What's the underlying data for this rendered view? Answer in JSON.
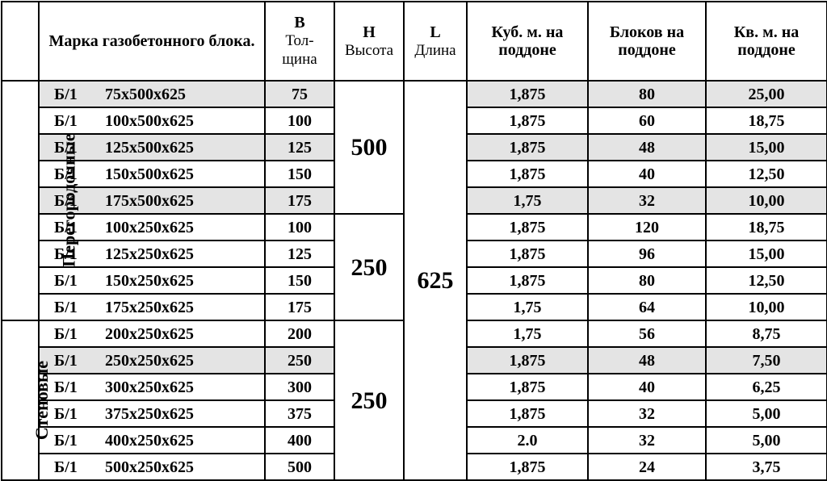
{
  "headers": {
    "cat": "",
    "mark": "Марка газобетонного блока.",
    "B": "B",
    "B_sub": "Тол-\nщина",
    "H": "H",
    "H_sub": "Высота",
    "L": "L",
    "L_sub": "Длина",
    "cub": "Куб. м. на поддоне",
    "blocks": "Блоков на поддоне",
    "sqm": "Кв. м. на поддоне"
  },
  "categories": [
    {
      "label": "Перегородочные",
      "rows": 9
    },
    {
      "label": "Стеновые",
      "rows": 6
    }
  ],
  "H_groups": [
    {
      "value": "500",
      "rows": 5
    },
    {
      "value": "250",
      "rows": 4
    },
    {
      "value": "250",
      "rows": 6
    }
  ],
  "L_label": "625",
  "rows": [
    {
      "mark": "Б/1",
      "dim": "75х500х625",
      "B": "75",
      "cub": "1,875",
      "blk": "80",
      "sqm": "25,00",
      "shade": true
    },
    {
      "mark": "Б/1",
      "dim": "100х500х625",
      "B": "100",
      "cub": "1,875",
      "blk": "60",
      "sqm": "18,75",
      "shade": false
    },
    {
      "mark": "Б/1",
      "dim": "125х500х625",
      "B": "125",
      "cub": "1,875",
      "blk": "48",
      "sqm": "15,00",
      "shade": true
    },
    {
      "mark": "Б/1",
      "dim": "150х500х625",
      "B": "150",
      "cub": "1,875",
      "blk": "40",
      "sqm": "12,50",
      "shade": false
    },
    {
      "mark": "Б/1",
      "dim": "175х500х625",
      "B": "175",
      "cub": "1,75",
      "blk": "32",
      "sqm": "10,00",
      "shade": true
    },
    {
      "mark": "Б/1",
      "dim": "100х250х625",
      "B": "100",
      "cub": "1,875",
      "blk": "120",
      "sqm": "18,75",
      "shade": false
    },
    {
      "mark": "Б/1",
      "dim": "125х250х625",
      "B": "125",
      "cub": "1,875",
      "blk": "96",
      "sqm": "15,00",
      "shade": false
    },
    {
      "mark": "Б/1",
      "dim": "150х250х625",
      "B": "150",
      "cub": "1,875",
      "blk": "80",
      "sqm": "12,50",
      "shade": false
    },
    {
      "mark": "Б/1",
      "dim": "175х250х625",
      "B": "175",
      "cub": "1,75",
      "blk": "64",
      "sqm": "10,00",
      "shade": false
    },
    {
      "mark": "Б/1",
      "dim": "200х250х625",
      "B": "200",
      "cub": "1,75",
      "blk": "56",
      "sqm": "8,75",
      "shade": false
    },
    {
      "mark": "Б/1",
      "dim": "250х250х625",
      "B": "250",
      "cub": "1,875",
      "blk": "48",
      "sqm": "7,50",
      "shade": true
    },
    {
      "mark": "Б/1",
      "dim": "300х250х625",
      "B": "300",
      "cub": "1,875",
      "blk": "40",
      "sqm": "6,25",
      "shade": false
    },
    {
      "mark": "Б/1",
      "dim": "375х250х625",
      "B": "375",
      "cub": "1,875",
      "blk": "32",
      "sqm": "5,00",
      "shade": false
    },
    {
      "mark": "Б/1",
      "dim": "400х250х625",
      "B": "400",
      "cub": "2.0",
      "blk": "32",
      "sqm": "5,00",
      "shade": false
    },
    {
      "mark": "Б/1",
      "dim": "500х250х625",
      "B": "500",
      "cub": "1,875",
      "blk": "24",
      "sqm": "3,75",
      "shade": false
    }
  ],
  "col_widths": {
    "cat": 46,
    "mark": 280,
    "B": 86,
    "H": 86,
    "L": 78,
    "cub": 150,
    "blocks": 146,
    "sqm": 150
  },
  "colors": {
    "shade": "#e4e4e4",
    "border": "#000000",
    "bg": "#ffffff"
  }
}
